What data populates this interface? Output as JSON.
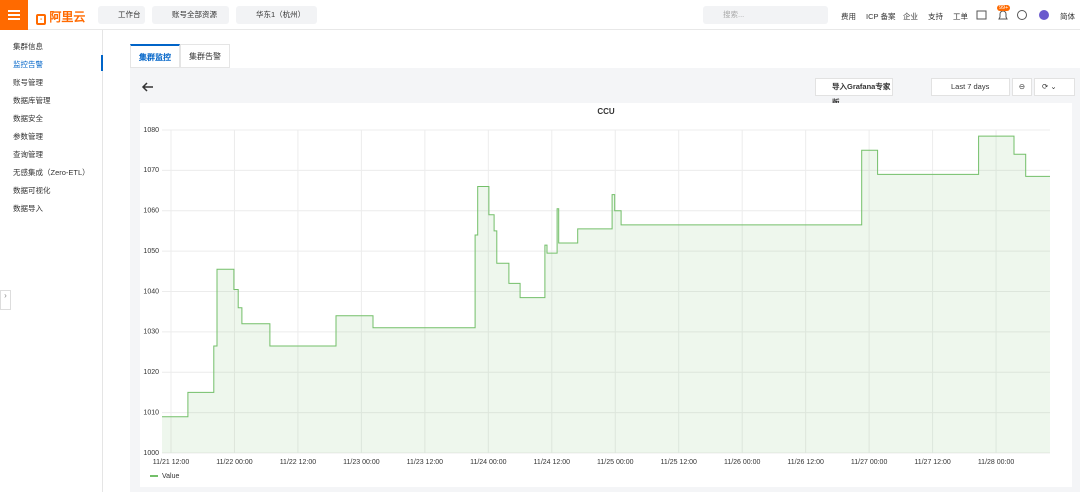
{
  "topbar": {
    "logo": "阿里云",
    "nav": [
      "工作台",
      "账号全部资源",
      "华东1（杭州）"
    ],
    "search": "搜索...",
    "links": [
      "费用",
      "ICP 备案",
      "企业",
      "支持",
      "工单"
    ],
    "badge": "99+",
    "language": "简体"
  },
  "sidebar": {
    "items": [
      "集群信息",
      "监控告警",
      "账号管理",
      "数据库管理",
      "数据安全",
      "参数管理",
      "查询管理",
      "无感集成（Zero-ETL）",
      "数据可视化",
      "数据导入"
    ],
    "active": 1
  },
  "tabs": {
    "items": [
      "集群监控",
      "集群告警"
    ],
    "active": 0
  },
  "toolbar": {
    "import": "导入Grafana专家版",
    "time_range": "Last 7 days"
  },
  "chart_data": {
    "type": "line",
    "title": "CCU",
    "x": [
      10.3,
      15.2,
      15.2,
      20.1,
      20.1,
      20.7,
      20.7,
      23.9,
      23.9,
      24.7,
      24.7,
      25.4,
      25.4,
      30.7,
      30.7,
      43.2,
      43.2,
      50.2,
      50.2,
      69.5,
      69.5,
      70.0,
      70.0,
      72.1,
      72.1,
      73.1,
      73.1,
      73.6,
      73.6,
      75.9,
      75.9,
      78.0,
      78.0,
      82.7,
      82.7,
      83.1,
      83.1,
      85.0,
      85.0,
      85.3,
      85.3,
      88.9,
      88.9,
      95.4,
      95.4,
      95.9,
      95.9,
      97.1,
      97.1,
      142.6,
      142.6,
      145.6,
      145.6,
      164.7,
      164.7,
      171.4,
      171.4,
      173.6,
      173.6,
      178.2
    ],
    "series": [
      {
        "name": "Value",
        "color": "#73bf69",
        "values": [
          1009,
          1009,
          1015,
          1015,
          1026.5,
          1026.5,
          1045.5,
          1045.5,
          1040.5,
          1040.5,
          1036,
          1036,
          1032,
          1032,
          1026.5,
          1026.5,
          1034,
          1034,
          1031,
          1031,
          1054,
          1054,
          1066,
          1066,
          1059,
          1059,
          1055,
          1055,
          1047,
          1047,
          1042,
          1042,
          1038.5,
          1038.5,
          1051.5,
          1051.5,
          1049.5,
          1049.5,
          1060.5,
          1060.5,
          1052,
          1052,
          1055.5,
          1055.5,
          1064,
          1064,
          1060,
          1060,
          1056.5,
          1056.5,
          1075,
          1075,
          1069,
          1069,
          1078.5,
          1078.5,
          1074,
          1074,
          1068.5,
          1068.5
        ]
      }
    ],
    "xlim": [
      10.3,
      178.2
    ],
    "ylim": [
      1000,
      1080
    ],
    "xticks": [
      {
        "value": 12,
        "label": "11/21 12:00"
      },
      {
        "value": 24,
        "label": "11/22 00:00"
      },
      {
        "value": 36,
        "label": "11/22 12:00"
      },
      {
        "value": 48,
        "label": "11/23 00:00"
      },
      {
        "value": 60,
        "label": "11/23 12:00"
      },
      {
        "value": 72,
        "label": "11/24 00:00"
      },
      {
        "value": 84,
        "label": "11/24 12:00"
      },
      {
        "value": 96,
        "label": "11/25 00:00"
      },
      {
        "value": 108,
        "label": "11/25 12:00"
      },
      {
        "value": 120,
        "label": "11/26 00:00"
      },
      {
        "value": 132,
        "label": "11/26 12:00"
      },
      {
        "value": 144,
        "label": "11/27 00:00"
      },
      {
        "value": 156,
        "label": "11/27 12:00"
      },
      {
        "value": 168,
        "label": "11/28 00:00"
      }
    ],
    "yticks": [
      1000,
      1010,
      1020,
      1030,
      1040,
      1050,
      1060,
      1070,
      1080
    ],
    "grid": true,
    "fill": true,
    "legend": "bottom-left"
  }
}
